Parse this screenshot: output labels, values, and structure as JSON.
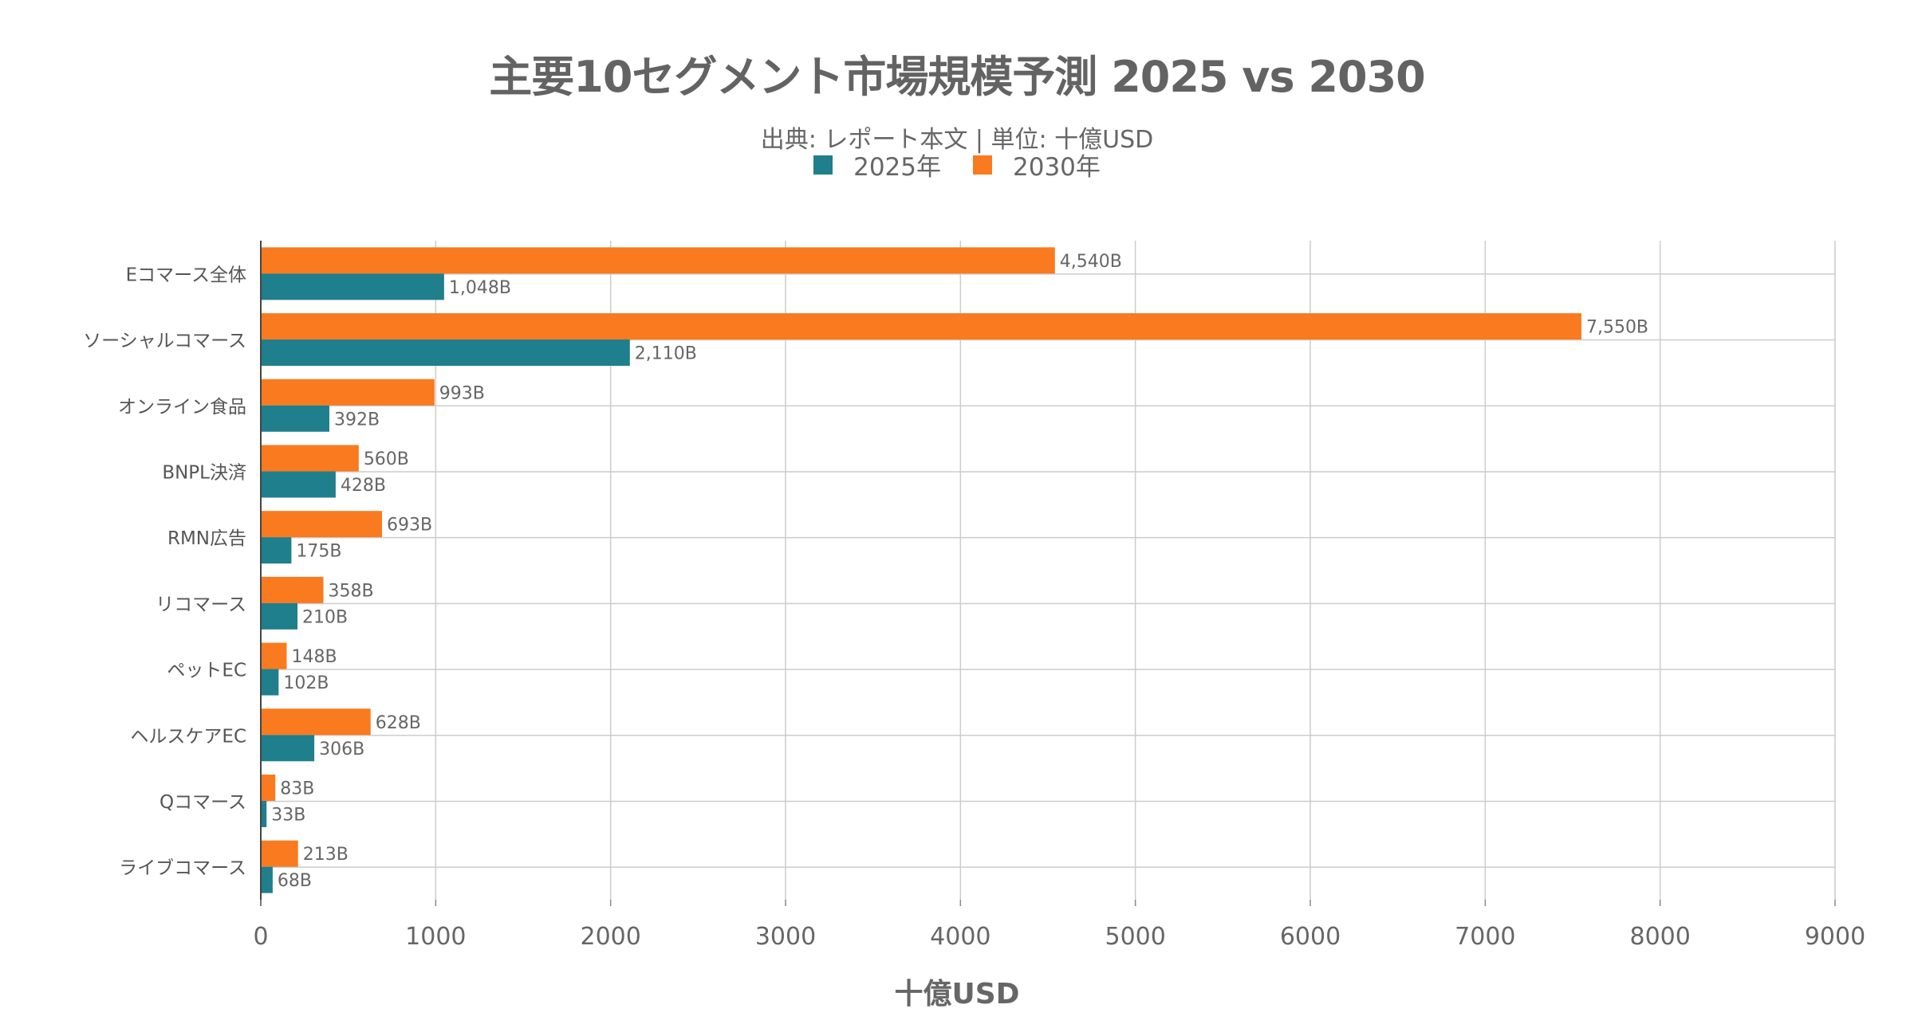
{
  "chart_data": {
    "type": "bar",
    "orientation": "horizontal",
    "title": "主要10セグメント市場規模予測 2025 vs 2030",
    "subtitle": "出典: レポート本文 | 単位: 十億USD",
    "xlabel": "十億USD",
    "ylabel": "",
    "xlim": [
      0,
      9000
    ],
    "x_ticks": [
      "0",
      "1000",
      "2000",
      "3000",
      "4000",
      "5000",
      "6000",
      "7000",
      "8000",
      "9000"
    ],
    "grid": true,
    "legend_position": "top-center",
    "categories": [
      "Eコマース全体",
      "ソーシャルコマース",
      "オンライン食品",
      "BNPL決済",
      "RMN広告",
      "リコマース",
      "ペットEC",
      "ヘルスケアEC",
      "Qコマース",
      "ライブコマース"
    ],
    "series": [
      {
        "name": "2025年",
        "color": "#1f7f8c",
        "values": [
          1048,
          2110,
          392,
          428,
          175,
          210,
          102,
          306,
          33,
          68
        ],
        "labels": [
          "1,048B",
          "2,110B",
          "392B",
          "428B",
          "175B",
          "210B",
          "102B",
          "306B",
          "33B",
          "68B"
        ]
      },
      {
        "name": "2030年",
        "color": "#f97a1f",
        "values": [
          4540,
          7550,
          993,
          560,
          693,
          358,
          148,
          628,
          83,
          213
        ],
        "labels": [
          "4,540B",
          "7,550B",
          "993B",
          "560B",
          "693B",
          "358B",
          "148B",
          "628B",
          "83B",
          "213B"
        ]
      }
    ]
  }
}
